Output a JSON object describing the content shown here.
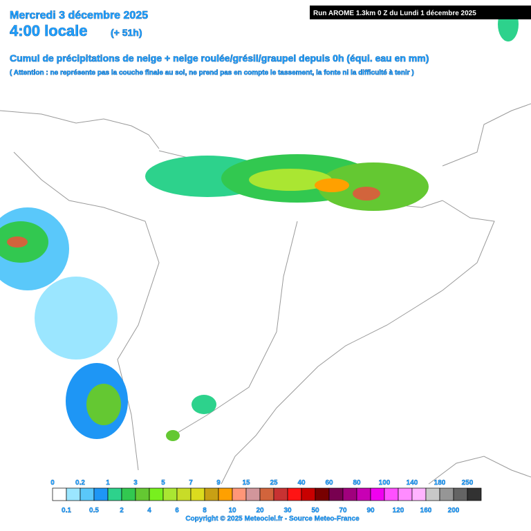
{
  "header": {
    "date": "Mercredi 3 décembre 2025",
    "time": "4:00 locale",
    "lead": "(+ 51h)",
    "run": "Run AROME 1.3km 0 Z du Lundi 1 décembre 2025",
    "title": "Cumul de précipitations de neige + neige roulée/grésil/graupel depuis 0h (équi. eau en mm)",
    "note": "( Attention : ne représente pas la couche finale au sol, ne prend pas en compte le tassement, la fonte ni la difficulté à tenir )"
  },
  "legend": {
    "values": [
      0,
      0.1,
      0.2,
      0.5,
      1,
      2,
      3,
      4,
      5,
      6,
      7,
      8,
      9,
      10,
      15,
      20,
      25,
      30,
      40,
      50,
      60,
      70,
      80,
      90,
      100,
      120,
      140,
      160,
      180,
      200,
      250
    ],
    "colors": [
      "#ffffff",
      "#9be6ff",
      "#5ac8fa",
      "#1e96f5",
      "#2dd28c",
      "#32c850",
      "#64c832",
      "#78f01e",
      "#aae632",
      "#c8dc28",
      "#dcdc1e",
      "#c8a014",
      "#ffa000",
      "#ff9678",
      "#d2969b",
      "#d2643c",
      "#c83232",
      "#ff1414",
      "#c80000",
      "#780000",
      "#780050",
      "#a0007d",
      "#c800b4",
      "#f000f0",
      "#ff50ff",
      "#ff8cff",
      "#ffb4ff",
      "#c8c8c8",
      "#969696",
      "#646464",
      "#323232"
    ]
  },
  "footer": {
    "copyright": "Copyright © 2025 Meteociel.fr - Source Meteo-France"
  }
}
